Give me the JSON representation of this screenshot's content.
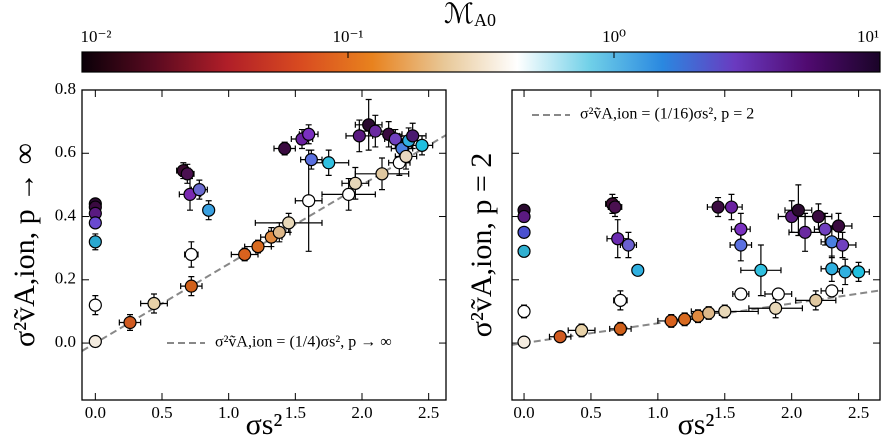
{
  "chart_data": [
    {
      "type": "scatter",
      "xlabel": "σs²",
      "ylabel": "σ²ṽA,ion, p → ∞",
      "legend": "σ²ṽA,ion = (1/4)σs²,  p → ∞",
      "legend_loc": "lower right",
      "fit_slope": 0.25,
      "fit_color": "#888888",
      "xlim": [
        -0.1,
        2.63
      ],
      "ylim": [
        -0.18,
        0.8
      ],
      "xticks": [
        {
          "value": 0,
          "label": "0.0"
        },
        {
          "value": 0.5,
          "label": "0.5"
        },
        {
          "value": 1,
          "label": "1.0"
        },
        {
          "value": 1.5,
          "label": "1.5"
        },
        {
          "value": 2,
          "label": "2.0"
        },
        {
          "value": 2.5,
          "label": "2.5"
        }
      ],
      "yticks": [
        {
          "value": 0,
          "label": "0.0"
        },
        {
          "value": 0.2,
          "label": "0.2"
        },
        {
          "value": 0.4,
          "label": "0.4"
        },
        {
          "value": 0.6,
          "label": "0.6"
        },
        {
          "value": 0.8,
          "label": "0.8"
        }
      ],
      "x": [
        0,
        0,
        0,
        0,
        0,
        0,
        0,
        0.26,
        0.44,
        0.66,
        0.69,
        0.71,
        0.78,
        0.85,
        0.72,
        0.72,
        1.12,
        1.22,
        1.32,
        1.38,
        1.45,
        1.42,
        1.55,
        1.6,
        1.62,
        1.6,
        1.75,
        1.9,
        1.95,
        2.15,
        1.98,
        2.05,
        2.1,
        2.2,
        2.25,
        2.3,
        2.35,
        2.28,
        2.33,
        2.45,
        2.38
      ],
      "y": [
        0.44,
        0.43,
        0.41,
        0.38,
        0.32,
        0.12,
        0.005,
        0.065,
        0.125,
        0.545,
        0.535,
        0.47,
        0.485,
        0.42,
        0.28,
        0.18,
        0.28,
        0.305,
        0.335,
        0.35,
        0.38,
        0.615,
        0.645,
        0.66,
        0.58,
        0.45,
        0.57,
        0.47,
        0.505,
        0.535,
        0.655,
        0.69,
        0.67,
        0.66,
        0.645,
        0.615,
        0.64,
        0.57,
        0.59,
        0.625,
        0.655
      ],
      "xerr": [
        0.01,
        0.01,
        0.01,
        0.01,
        0.01,
        0.01,
        0.01,
        0.08,
        0.1,
        0.05,
        0.05,
        0.08,
        0.06,
        0.04,
        0.05,
        0.08,
        0.1,
        0.1,
        0.08,
        0.08,
        0.25,
        0.08,
        0.08,
        0.07,
        0.08,
        0.1,
        0.15,
        0.2,
        0.1,
        0.2,
        0.1,
        0.1,
        0.12,
        0.1,
        0.08,
        0.08,
        0.1,
        0.08,
        0.08,
        0.08,
        0.1
      ],
      "yerr": [
        0.015,
        0.015,
        0.015,
        0.015,
        0.025,
        0.03,
        0.01,
        0.025,
        0.03,
        0.025,
        0.03,
        0.05,
        0.03,
        0.03,
        0.04,
        0.03,
        0.02,
        0.02,
        0.03,
        0.03,
        0.03,
        0.02,
        0.03,
        0.03,
        0.03,
        0.16,
        0.04,
        0.05,
        0.05,
        0.05,
        0.05,
        0.08,
        0.05,
        0.04,
        0.03,
        0.03,
        0.04,
        0.04,
        0.04,
        0.03,
        0.04
      ],
      "colors": [
        "#2a0a30",
        "#3a0a40",
        "#5a1a80",
        "#6a4ad0",
        "#2aa8d0",
        "#ffffff",
        "#f4ece0",
        "#d05a20",
        "#e8d2a8",
        "#3a0a30",
        "#4a1050",
        "#7a2ab0",
        "#6a6ad0",
        "#3aa0e0",
        "#ffffff",
        "#d0601a",
        "#d8621e",
        "#d86a20",
        "#e08a40",
        "#ddb88a",
        "#e8d8b8",
        "#3a0a40",
        "#6a20a0",
        "#7a30c0",
        "#5a70e0",
        "#ffffff",
        "#30c0e0",
        "#ffffff",
        "#e6d6b8",
        "#e0c8a0",
        "#5a1a80",
        "#2a0a30",
        "#6a2aa0",
        "#3a0a40",
        "#7040c0",
        "#4a80e0",
        "#30b0e0",
        "#ffffff",
        "#e8d8c0",
        "#20c0e0",
        "#4a1a70"
      ]
    },
    {
      "type": "scatter",
      "xlabel": "σs²",
      "ylabel": "σ²ṽA,ion, p = 2",
      "legend": "σ²ṽA,ion = (1/16)σs²,  p = 2",
      "legend_loc": "upper left",
      "fit_slope": 0.0625,
      "fit_color": "#888888",
      "xlim": [
        -0.09,
        2.66
      ],
      "ylim": [
        -0.18,
        0.8
      ],
      "xticks": [
        {
          "value": 0,
          "label": "0.0"
        },
        {
          "value": 0.5,
          "label": "0.5"
        },
        {
          "value": 1,
          "label": "1.0"
        },
        {
          "value": 1.5,
          "label": "1.5"
        },
        {
          "value": 2,
          "label": "2.0"
        },
        {
          "value": 2.5,
          "label": "2.5"
        }
      ],
      "yticks": [
        0,
        0.2,
        0.4,
        0.6,
        0.8
      ],
      "ytick_labels": false,
      "x": [
        0,
        0,
        0,
        0,
        0,
        0,
        0.27,
        0.43,
        0.66,
        0.68,
        0.7,
        0.78,
        0.85,
        0.72,
        0.72,
        1.1,
        1.2,
        1.3,
        1.38,
        1.5,
        1.45,
        1.55,
        1.62,
        1.62,
        1.62,
        1.77,
        1.88,
        1.9,
        2.0,
        2.05,
        2.1,
        2.2,
        2.25,
        2.3,
        2.35,
        2.3,
        2.18,
        2.3,
        2.4,
        2.5,
        2.38
      ],
      "y": [
        0.42,
        0.4,
        0.35,
        0.29,
        0.1,
        0.003,
        0.02,
        0.04,
        0.44,
        0.43,
        0.33,
        0.31,
        0.23,
        0.135,
        0.045,
        0.07,
        0.075,
        0.085,
        0.095,
        0.1,
        0.43,
        0.43,
        0.36,
        0.31,
        0.155,
        0.23,
        0.11,
        0.155,
        0.4,
        0.42,
        0.35,
        0.4,
        0.36,
        0.32,
        0.37,
        0.235,
        0.135,
        0.165,
        0.225,
        0.225,
        0.31
      ],
      "xerr": [
        0.01,
        0.01,
        0.01,
        0.01,
        0.01,
        0.01,
        0.08,
        0.1,
        0.05,
        0.05,
        0.08,
        0.06,
        0.04,
        0.05,
        0.08,
        0.1,
        0.1,
        0.08,
        0.08,
        0.25,
        0.08,
        0.08,
        0.07,
        0.08,
        0.06,
        0.15,
        0.2,
        0.1,
        0.1,
        0.1,
        0.12,
        0.1,
        0.08,
        0.08,
        0.1,
        0.08,
        0.15,
        0.08,
        0.08,
        0.08,
        0.1
      ],
      "yerr": [
        0.01,
        0.01,
        0.015,
        0.015,
        0.02,
        0.01,
        0.015,
        0.02,
        0.03,
        0.03,
        0.06,
        0.04,
        0.015,
        0.03,
        0.02,
        0.02,
        0.02,
        0.02,
        0.02,
        0.02,
        0.03,
        0.04,
        0.05,
        0.05,
        0.015,
        0.08,
        0.03,
        0.015,
        0.05,
        0.08,
        0.06,
        0.04,
        0.05,
        0.05,
        0.04,
        0.04,
        0.03,
        0.015,
        0.04,
        0.03,
        0.04
      ],
      "colors": [
        "#2a0a30",
        "#5a1a80",
        "#4a50d0",
        "#30b0d0",
        "#ffffff",
        "#f4ece0",
        "#d05a20",
        "#e8d2a8",
        "#3a0a30",
        "#4a1050",
        "#6a2ab0",
        "#6a60d0",
        "#30b0e0",
        "#ffffff",
        "#d0601a",
        "#d8621e",
        "#d86a20",
        "#e08a40",
        "#ddb88a",
        "#e8d8b8",
        "#3a0a40",
        "#6a20a0",
        "#7a30c0",
        "#5a70e0",
        "#ffffff",
        "#30c0e0",
        "#e8d8b8",
        "#ffffff",
        "#5a1a80",
        "#2a0a30",
        "#6a2aa0",
        "#3a0a40",
        "#7040c0",
        "#4a80e0",
        "#3a0a40",
        "#30b0e0",
        "#e0c8a0",
        "#ffffff",
        "#30b0e0",
        "#20c0e0",
        "#7040c0"
      ]
    },
    {
      "type": "colorbar",
      "label": "ℳ",
      "label_sub": "A0",
      "log": true,
      "lim": [
        0.01,
        10
      ],
      "ticks": [
        {
          "value": 0.01,
          "label": "10⁻²"
        },
        {
          "value": 0.1,
          "label": "10⁻¹"
        },
        {
          "value": 1,
          "label": "10⁰"
        },
        {
          "value": 10,
          "label": "10¹"
        }
      ],
      "colormap": [
        "#0a0008",
        "#5a0a20",
        "#b01e28",
        "#d84a20",
        "#e8821e",
        "#e8c898",
        "#ffffff",
        "#70d0e8",
        "#2a88e0",
        "#6a3ac0",
        "#500a70",
        "#1a0428"
      ]
    }
  ]
}
